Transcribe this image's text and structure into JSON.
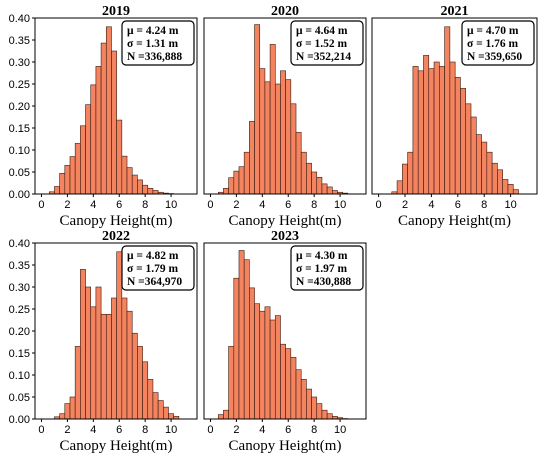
{
  "chart_data": [
    {
      "type": "bar",
      "title": "2019",
      "xlabel": "Canopy Height(m)",
      "ylabel": "",
      "xlim": [
        -0.5,
        12
      ],
      "ylim": [
        0,
        0.4
      ],
      "bin_width": 0.4,
      "x": [
        0.6,
        1.0,
        1.4,
        1.8,
        2.2,
        2.6,
        3.0,
        3.4,
        3.8,
        4.2,
        4.6,
        5.0,
        5.4,
        5.8,
        6.2,
        6.6,
        7.0,
        7.4,
        7.8,
        8.2,
        8.6,
        9.0,
        9.4,
        9.8
      ],
      "values": [
        0.005,
        0.017,
        0.047,
        0.065,
        0.085,
        0.115,
        0.155,
        0.203,
        0.248,
        0.29,
        0.343,
        0.38,
        0.325,
        0.168,
        0.086,
        0.06,
        0.043,
        0.032,
        0.02,
        0.013,
        0.008,
        0.004,
        0.002,
        0.001
      ],
      "stats": {
        "mu": "μ = 4.24 m",
        "sigma": "σ = 1.31 m",
        "n": "N =336,888"
      },
      "xticks": [
        "0",
        "2",
        "4",
        "6",
        "8",
        "10"
      ],
      "yticks": [
        "0.00",
        "0.05",
        "0.10",
        "0.15",
        "0.20",
        "0.25",
        "0.30",
        "0.35",
        "0.40"
      ],
      "grid": false,
      "color": "#f4845f"
    },
    {
      "type": "bar",
      "title": "2020",
      "xlabel": "Canopy Height(m)",
      "ylabel": "",
      "xlim": [
        -0.5,
        12
      ],
      "ylim": [
        0,
        0.4
      ],
      "bin_width": 0.4,
      "x": [
        0.6,
        1.0,
        1.4,
        1.8,
        2.2,
        2.6,
        3.0,
        3.4,
        3.8,
        4.2,
        4.6,
        5.0,
        5.4,
        5.8,
        6.2,
        6.6,
        7.0,
        7.4,
        7.8,
        8.2,
        8.6,
        9.0,
        9.4,
        9.8,
        10.2
      ],
      "values": [
        0.004,
        0.013,
        0.037,
        0.052,
        0.062,
        0.095,
        0.165,
        0.385,
        0.285,
        0.255,
        0.34,
        0.25,
        0.28,
        0.26,
        0.205,
        0.14,
        0.095,
        0.07,
        0.05,
        0.038,
        0.023,
        0.016,
        0.008,
        0.004,
        0.002
      ],
      "stats": {
        "mu": "μ = 4.64 m",
        "sigma": "σ = 1.52 m",
        "n": "N =352,214"
      },
      "xticks": [
        "0",
        "2",
        "4",
        "6",
        "8",
        "10"
      ],
      "grid": false,
      "color": "#f4845f"
    },
    {
      "type": "bar",
      "title": "2021",
      "xlabel": "Canopy Height(m)",
      "ylabel": "",
      "xlim": [
        -0.5,
        12
      ],
      "ylim": [
        0,
        0.4
      ],
      "bin_width": 0.4,
      "x": [
        1.0,
        1.4,
        1.8,
        2.2,
        2.6,
        3.0,
        3.4,
        3.8,
        4.2,
        4.6,
        5.0,
        5.4,
        5.8,
        6.2,
        6.6,
        7.0,
        7.4,
        7.8,
        8.2,
        8.6,
        9.0,
        9.4,
        9.8,
        10.2
      ],
      "values": [
        0.005,
        0.03,
        0.068,
        0.095,
        0.29,
        0.28,
        0.315,
        0.285,
        0.3,
        0.29,
        0.38,
        0.3,
        0.265,
        0.24,
        0.205,
        0.175,
        0.135,
        0.118,
        0.095,
        0.07,
        0.055,
        0.033,
        0.022,
        0.01
      ],
      "stats": {
        "mu": "μ = 4.70 m",
        "sigma": "σ = 1.76 m",
        "n": "N =359,650"
      },
      "xticks": [
        "0",
        "2",
        "4",
        "6",
        "8",
        "10"
      ],
      "grid": false,
      "color": "#f4845f"
    },
    {
      "type": "bar",
      "title": "2022",
      "xlabel": "Canopy Height(m)",
      "ylabel": "",
      "xlim": [
        -0.5,
        12
      ],
      "ylim": [
        0,
        0.4
      ],
      "bin_width": 0.4,
      "x": [
        1.0,
        1.4,
        1.8,
        2.2,
        2.6,
        3.0,
        3.4,
        3.8,
        4.2,
        4.6,
        5.0,
        5.4,
        5.8,
        6.2,
        6.6,
        7.0,
        7.4,
        7.8,
        8.2,
        8.6,
        9.0,
        9.4,
        9.8,
        10.2
      ],
      "values": [
        0.005,
        0.012,
        0.035,
        0.05,
        0.165,
        0.34,
        0.3,
        0.255,
        0.3,
        0.238,
        0.238,
        0.275,
        0.38,
        0.275,
        0.245,
        0.195,
        0.165,
        0.13,
        0.09,
        0.06,
        0.042,
        0.027,
        0.012,
        0.006
      ],
      "stats": {
        "mu": "μ = 4.82 m",
        "sigma": "σ = 1.79 m",
        "n": "N =364,970"
      },
      "xticks": [
        "0",
        "2",
        "4",
        "6",
        "8",
        "10"
      ],
      "yticks": [
        "0.00",
        "0.05",
        "0.10",
        "0.15",
        "0.20",
        "0.25",
        "0.30",
        "0.35",
        "0.40"
      ],
      "grid": false,
      "color": "#f4845f"
    },
    {
      "type": "bar",
      "title": "2023",
      "xlabel": "Canopy Height(m)",
      "ylabel": "",
      "xlim": [
        -0.5,
        12
      ],
      "ylim": [
        0,
        0.4
      ],
      "bin_width": 0.4,
      "x": [
        0.6,
        1.0,
        1.4,
        1.8,
        2.2,
        2.6,
        3.0,
        3.4,
        3.8,
        4.2,
        4.6,
        5.0,
        5.4,
        5.8,
        6.2,
        6.6,
        7.0,
        7.4,
        7.8,
        8.2,
        8.6,
        9.0,
        9.4,
        9.8,
        10.2
      ],
      "values": [
        0.01,
        0.02,
        0.165,
        0.32,
        0.383,
        0.362,
        0.298,
        0.262,
        0.245,
        0.255,
        0.225,
        0.235,
        0.17,
        0.16,
        0.14,
        0.112,
        0.09,
        0.068,
        0.05,
        0.035,
        0.02,
        0.012,
        0.006,
        0.003,
        0.001
      ],
      "stats": {
        "mu": "μ = 4.30 m",
        "sigma": "σ = 1.97 m",
        "n": "N =430,888"
      },
      "xticks": [
        "0",
        "2",
        "4",
        "6",
        "8",
        "10"
      ],
      "grid": false,
      "color": "#f4845f"
    }
  ]
}
